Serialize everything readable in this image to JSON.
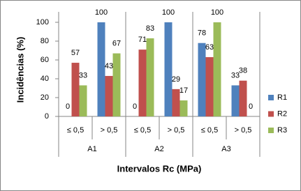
{
  "chart_data": {
    "type": "bar",
    "y_label": "Incidências (%)",
    "x_label": "Intervalos Rc (MPa)",
    "categories": [
      "≤ 0,5",
      "> 0,5",
      "≤ 0,5",
      "> 0,5",
      "≤ 0,5",
      "> 0,5"
    ],
    "groups": [
      "A1",
      "A2",
      "A3"
    ],
    "series": [
      {
        "name": "R1",
        "color": "#4f81bd",
        "values": [
          0,
          100,
          0,
          100,
          78,
          33
        ]
      },
      {
        "name": "R2",
        "color": "#c0504d",
        "values": [
          57,
          43,
          71,
          29,
          63,
          38
        ]
      },
      {
        "name": "R3",
        "color": "#9bbb59",
        "values": [
          33,
          67,
          83,
          17,
          100,
          0
        ]
      }
    ],
    "ylim": [
      0,
      100
    ],
    "yticks": [
      0,
      20,
      40,
      60,
      80,
      100
    ],
    "grid": false,
    "legend": "right",
    "data_labels": true
  }
}
